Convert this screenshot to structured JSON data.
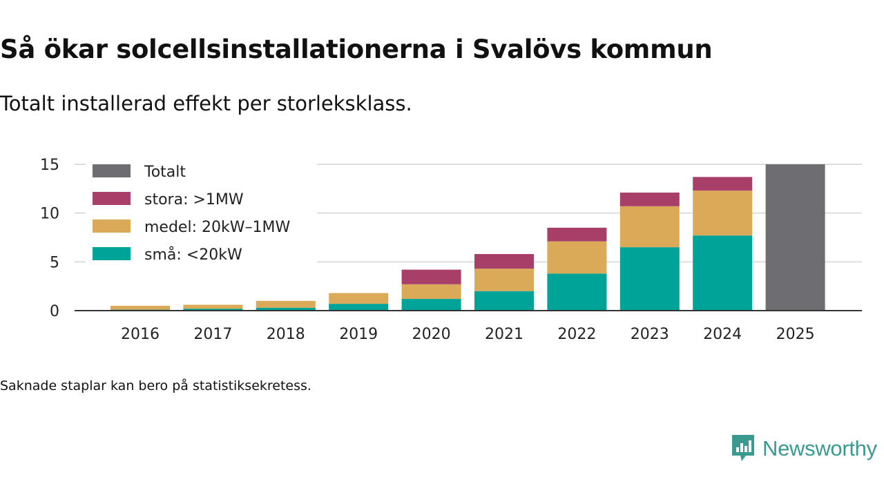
{
  "title": "Så ökar solcellsinstallationerna i Svalövs kommun",
  "subtitle": "Totalt installerad effekt per storleksklass.",
  "note": "Saknade staplar kan bero på statistiksekretess.",
  "brand": {
    "name": "Newsworthy",
    "color": "#3a9a90",
    "icon": "newsworthy-logo-icon"
  },
  "chart_data": {
    "type": "bar",
    "stacked": true,
    "title": "Så ökar solcellsinstallationerna i Svalövs kommun",
    "xlabel": "",
    "ylabel": "",
    "ylim": [
      0,
      15
    ],
    "yticks": [
      "0",
      "5",
      "10",
      "15"
    ],
    "grid": true,
    "legend_position": "top-left",
    "categories": [
      "2016",
      "2017",
      "2018",
      "2019",
      "2020",
      "2021",
      "2022",
      "2023",
      "2024",
      "2025"
    ],
    "series": [
      {
        "name": "små: <20kW",
        "color": "#00a398",
        "values": [
          0.1,
          0.2,
          0.3,
          0.7,
          1.2,
          2.0,
          3.8,
          6.5,
          7.7,
          null
        ]
      },
      {
        "name": "medel: 20kW–1MW",
        "color": "#dbaa58",
        "values": [
          0.4,
          0.4,
          0.7,
          1.1,
          1.5,
          2.3,
          3.3,
          4.2,
          4.6,
          null
        ]
      },
      {
        "name": "stora: >1MW",
        "color": "#a83f68",
        "values": [
          0,
          0,
          0,
          0,
          1.5,
          1.5,
          1.4,
          1.4,
          1.4,
          null
        ]
      },
      {
        "name": "Totalt",
        "color": "#6e6d72",
        "values": [
          null,
          null,
          null,
          null,
          null,
          null,
          null,
          null,
          null,
          15.0
        ]
      }
    ],
    "legend": [
      {
        "name": "Totalt",
        "color": "#6e6d72"
      },
      {
        "name": "stora: >1MW",
        "color": "#a83f68"
      },
      {
        "name": "medel: 20kW–1MW",
        "color": "#dbaa58"
      },
      {
        "name": "små: <20kW",
        "color": "#00a398"
      }
    ]
  }
}
